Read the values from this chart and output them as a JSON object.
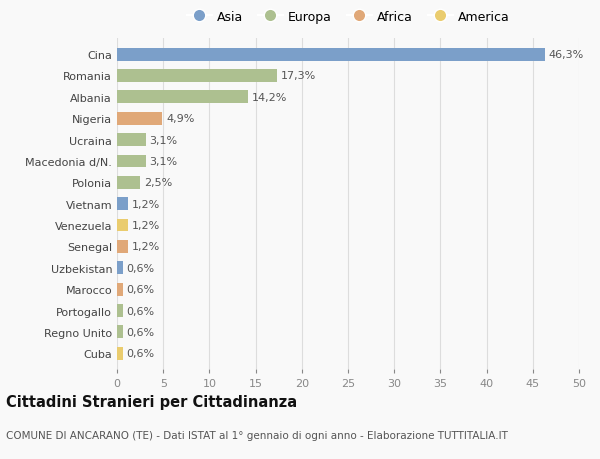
{
  "countries": [
    "Cina",
    "Romania",
    "Albania",
    "Nigeria",
    "Ucraina",
    "Macedonia d/N.",
    "Polonia",
    "Vietnam",
    "Venezuela",
    "Senegal",
    "Uzbekistan",
    "Marocco",
    "Portogallo",
    "Regno Unito",
    "Cuba"
  ],
  "values": [
    46.3,
    17.3,
    14.2,
    4.9,
    3.1,
    3.1,
    2.5,
    1.2,
    1.2,
    1.2,
    0.6,
    0.6,
    0.6,
    0.6,
    0.6
  ],
  "labels": [
    "46,3%",
    "17,3%",
    "14,2%",
    "4,9%",
    "3,1%",
    "3,1%",
    "2,5%",
    "1,2%",
    "1,2%",
    "1,2%",
    "0,6%",
    "0,6%",
    "0,6%",
    "0,6%",
    "0,6%"
  ],
  "continents": [
    "Asia",
    "Europa",
    "Europa",
    "Africa",
    "Europa",
    "Europa",
    "Europa",
    "Asia",
    "America",
    "Africa",
    "Asia",
    "Africa",
    "Europa",
    "Europa",
    "America"
  ],
  "colors": {
    "Asia": "#7b9fc9",
    "Europa": "#adc090",
    "Africa": "#e0a878",
    "America": "#eacc6e"
  },
  "xlim": [
    0,
    50
  ],
  "xticks": [
    0,
    5,
    10,
    15,
    20,
    25,
    30,
    35,
    40,
    45,
    50
  ],
  "title": "Cittadini Stranieri per Cittadinanza",
  "subtitle": "COMUNE DI ANCARANO (TE) - Dati ISTAT al 1° gennaio di ogni anno - Elaborazione TUTTITALIA.IT",
  "background_color": "#f9f9f9",
  "bar_height": 0.6,
  "label_fontsize": 8.0,
  "tick_fontsize": 8.0,
  "title_fontsize": 10.5,
  "subtitle_fontsize": 7.5,
  "legend_order": [
    "Asia",
    "Europa",
    "Africa",
    "America"
  ]
}
